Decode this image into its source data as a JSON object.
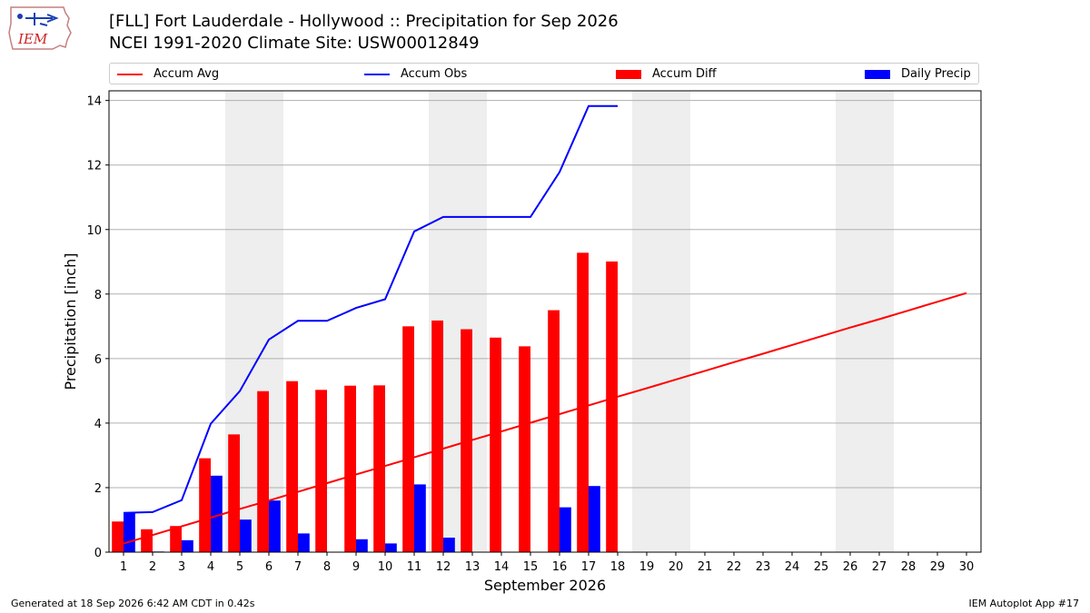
{
  "header": {
    "title_line1": "[FLL] Fort Lauderdale - Hollywood :: Precipitation for Sep 2026",
    "title_line2": "NCEI 1991-2020 Climate Site: USW00012849",
    "logo_text": "IEM"
  },
  "footer": {
    "generated": "Generated at 18 Sep 2026 6:42 AM CDT in 0.42s",
    "app": "IEM Autoplot App #17"
  },
  "colors": {
    "accum_avg": "#ff0000",
    "accum_obs": "#0000ff",
    "accum_diff": "#ff0000",
    "daily_precip": "#0000ff",
    "weekend_shade": "#eeeeee",
    "grid": "#b0b0b0"
  },
  "legend": [
    {
      "label": "Accum Avg",
      "type": "line",
      "color": "#ff0000"
    },
    {
      "label": "Accum Obs",
      "type": "line",
      "color": "#0000ff"
    },
    {
      "label": "Accum Diff",
      "type": "box",
      "color": "#ff0000"
    },
    {
      "label": "Daily Precip",
      "type": "box",
      "color": "#0000ff"
    }
  ],
  "chart_data": {
    "type": "bar",
    "xlabel": "September 2026",
    "ylabel": "Precipitation [inch]",
    "xlim": [
      0.5,
      30.5
    ],
    "ylim": [
      0,
      14.3
    ],
    "yticks": [
      0,
      2,
      4,
      6,
      8,
      10,
      12,
      14
    ],
    "ytick_labels": [
      "0",
      "2",
      "4",
      "6",
      "8",
      "10",
      "12",
      "14"
    ],
    "days": [
      1,
      2,
      3,
      4,
      5,
      6,
      7,
      8,
      9,
      10,
      11,
      12,
      13,
      14,
      15,
      16,
      17,
      18,
      19,
      20,
      21,
      22,
      23,
      24,
      25,
      26,
      27,
      28,
      29,
      30
    ],
    "day_labels": [
      "1",
      "2",
      "3",
      "4",
      "5",
      "6",
      "7",
      "8",
      "9",
      "10",
      "11",
      "12",
      "13",
      "14",
      "15",
      "16",
      "17",
      "18",
      "19",
      "20",
      "21",
      "22",
      "23",
      "24",
      "25",
      "26",
      "27",
      "28",
      "29",
      "30"
    ],
    "weekend_days": [
      5,
      6,
      12,
      13,
      19,
      20,
      26,
      27
    ],
    "grid": true,
    "legend_position": "top",
    "series": [
      {
        "name": "Accum Avg",
        "kind": "line",
        "values": [
          0.27,
          0.53,
          0.8,
          1.07,
          1.34,
          1.6,
          1.87,
          2.14,
          2.41,
          2.67,
          2.94,
          3.21,
          3.48,
          3.74,
          4.01,
          4.28,
          4.55,
          4.82,
          5.08,
          5.35,
          5.62,
          5.89,
          6.15,
          6.42,
          6.69,
          6.96,
          7.22,
          7.49,
          7.76,
          8.03
        ]
      },
      {
        "name": "Accum Obs",
        "kind": "line",
        "values": [
          1.22,
          1.24,
          1.61,
          3.98,
          4.99,
          6.59,
          7.17,
          7.17,
          7.57,
          7.84,
          9.94,
          10.39,
          10.39,
          10.39,
          10.39,
          11.78,
          13.83,
          13.83
        ]
      },
      {
        "name": "Accum Diff",
        "kind": "bar",
        "values": [
          0.95,
          0.71,
          0.81,
          2.91,
          3.65,
          4.99,
          5.3,
          5.03,
          5.16,
          5.17,
          7.0,
          7.18,
          6.91,
          6.65,
          6.38,
          7.5,
          9.28,
          9.01
        ]
      },
      {
        "name": "Daily Precip",
        "kind": "bar",
        "values": [
          1.22,
          0.02,
          0.37,
          2.37,
          1.01,
          1.6,
          0.58,
          0.0,
          0.4,
          0.27,
          2.1,
          0.45,
          0.01,
          0.0,
          0.0,
          1.39,
          2.05,
          0.01
        ]
      }
    ]
  }
}
